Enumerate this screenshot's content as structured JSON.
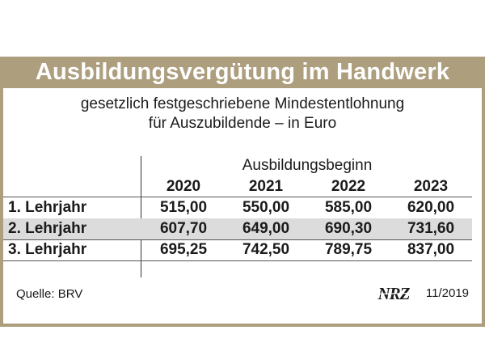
{
  "chart_data": {
    "type": "table",
    "title": "Ausbildungsvergütung im Handwerk",
    "subtitle": [
      "gesetzlich festgeschriebene Mindestentlohnung",
      "für Auszubildende – in Euro"
    ],
    "column_group": "Ausbildungsbeginn",
    "columns": [
      "2020",
      "2021",
      "2022",
      "2023"
    ],
    "rows": [
      {
        "label": "1. Lehrjahr",
        "values": [
          "515,00",
          "550,00",
          "585,00",
          "620,00"
        ]
      },
      {
        "label": "2. Lehrjahr",
        "values": [
          "607,70",
          "649,00",
          "690,30",
          "731,60"
        ]
      },
      {
        "label": "3. Lehrjahr",
        "values": [
          "695,25",
          "742,50",
          "789,75",
          "837,00"
        ]
      }
    ],
    "source": "Quelle: BRV",
    "logo": "NRZ",
    "date": "11/2019"
  },
  "colors": {
    "frame": "#ad9e7e",
    "highlight_row": "#dcdcdc",
    "text": "#1a1a1a"
  }
}
